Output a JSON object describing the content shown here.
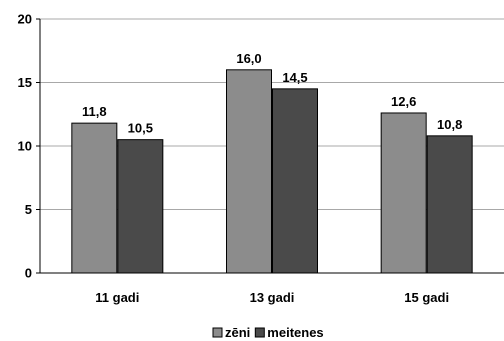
{
  "chart_data": {
    "type": "bar",
    "categories": [
      "11 gadi",
      "13 gadi",
      "15 gadi"
    ],
    "series": [
      {
        "name": "zēni",
        "values": [
          11.8,
          16.0,
          12.6
        ],
        "labels": [
          "11,8",
          "16,0",
          "12,6"
        ],
        "color": "#8c8c8c"
      },
      {
        "name": "meitenes",
        "values": [
          10.5,
          14.5,
          10.8
        ],
        "labels": [
          "10,5",
          "14,5",
          "10,8"
        ],
        "color": "#4a4a4a"
      }
    ],
    "title": "",
    "xlabel": "",
    "ylabel": "",
    "ylim": [
      0,
      20
    ],
    "yticks": [
      0,
      5,
      10,
      15,
      20
    ],
    "grid": true,
    "legend": "bottom-center"
  }
}
